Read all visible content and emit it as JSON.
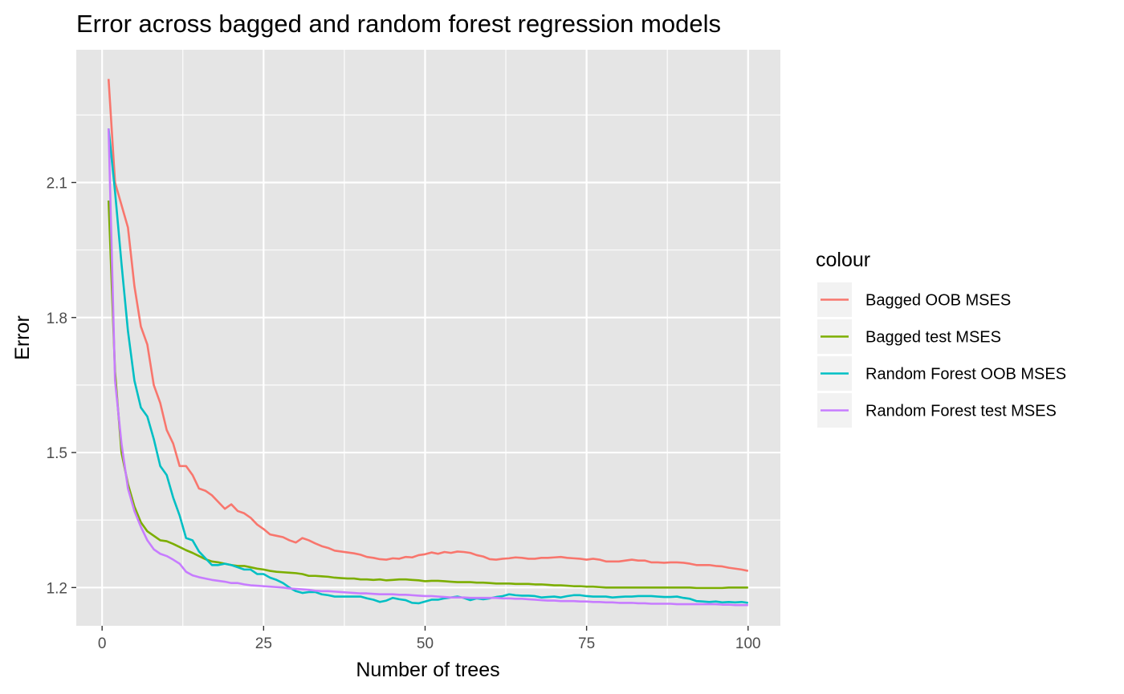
{
  "chart_data": {
    "type": "line",
    "title": "Error across bagged and random forest regression models",
    "xlabel": "Number of trees",
    "ylabel": "Error",
    "xlim": [
      -4,
      105
    ],
    "ylim": [
      1.115,
      2.395
    ],
    "x_ticks": [
      0,
      25,
      50,
      75,
      100
    ],
    "x_tick_labels": [
      "0",
      "25",
      "50",
      "75",
      "100"
    ],
    "y_ticks": [
      1.2,
      1.5,
      1.8,
      2.1
    ],
    "y_tick_labels": [
      "1.2",
      "1.5",
      "1.8",
      "2.1"
    ],
    "grid": true,
    "legend": {
      "title": "colour",
      "position": "right"
    },
    "x": [
      1,
      2,
      3,
      4,
      5,
      6,
      7,
      8,
      9,
      10,
      11,
      12,
      13,
      14,
      15,
      16,
      17,
      18,
      19,
      20,
      21,
      22,
      23,
      24,
      25,
      26,
      27,
      28,
      29,
      30,
      31,
      32,
      33,
      34,
      35,
      36,
      37,
      38,
      39,
      40,
      41,
      42,
      43,
      44,
      45,
      46,
      47,
      48,
      49,
      50,
      51,
      52,
      53,
      54,
      55,
      56,
      57,
      58,
      59,
      60,
      61,
      62,
      63,
      64,
      65,
      66,
      67,
      68,
      69,
      70,
      71,
      72,
      73,
      74,
      75,
      76,
      77,
      78,
      79,
      80,
      81,
      82,
      83,
      84,
      85,
      86,
      87,
      88,
      89,
      90,
      91,
      92,
      93,
      94,
      95,
      96,
      97,
      98,
      99,
      100
    ],
    "series": [
      {
        "name": "Bagged OOB MSES",
        "color": "#F8766D",
        "values": [
          2.33,
          2.1,
          2.05,
          2.0,
          1.87,
          1.78,
          1.74,
          1.65,
          1.61,
          1.55,
          1.52,
          1.47,
          1.47,
          1.45,
          1.42,
          1.415,
          1.405,
          1.39,
          1.375,
          1.385,
          1.37,
          1.365,
          1.355,
          1.34,
          1.33,
          1.318,
          1.315,
          1.312,
          1.305,
          1.3,
          1.31,
          1.305,
          1.298,
          1.292,
          1.288,
          1.282,
          1.28,
          1.278,
          1.276,
          1.273,
          1.268,
          1.266,
          1.263,
          1.262,
          1.265,
          1.264,
          1.268,
          1.267,
          1.272,
          1.274,
          1.278,
          1.275,
          1.279,
          1.277,
          1.28,
          1.279,
          1.277,
          1.272,
          1.269,
          1.263,
          1.262,
          1.264,
          1.265,
          1.267,
          1.266,
          1.264,
          1.264,
          1.266,
          1.266,
          1.267,
          1.268,
          1.266,
          1.265,
          1.264,
          1.262,
          1.264,
          1.262,
          1.258,
          1.258,
          1.258,
          1.26,
          1.262,
          1.26,
          1.26,
          1.256,
          1.256,
          1.255,
          1.256,
          1.256,
          1.255,
          1.253,
          1.25,
          1.25,
          1.25,
          1.248,
          1.247,
          1.244,
          1.242,
          1.24,
          1.237
        ]
      },
      {
        "name": "Bagged test MSES",
        "color": "#7CAE00",
        "values": [
          2.06,
          1.68,
          1.5,
          1.43,
          1.38,
          1.345,
          1.325,
          1.315,
          1.305,
          1.303,
          1.297,
          1.29,
          1.283,
          1.277,
          1.27,
          1.263,
          1.258,
          1.256,
          1.253,
          1.25,
          1.248,
          1.248,
          1.245,
          1.242,
          1.24,
          1.237,
          1.235,
          1.234,
          1.233,
          1.232,
          1.23,
          1.226,
          1.226,
          1.225,
          1.224,
          1.222,
          1.221,
          1.22,
          1.22,
          1.218,
          1.218,
          1.217,
          1.218,
          1.216,
          1.217,
          1.218,
          1.218,
          1.217,
          1.216,
          1.214,
          1.215,
          1.215,
          1.214,
          1.213,
          1.212,
          1.212,
          1.212,
          1.211,
          1.211,
          1.21,
          1.209,
          1.209,
          1.209,
          1.208,
          1.208,
          1.208,
          1.207,
          1.207,
          1.206,
          1.205,
          1.205,
          1.204,
          1.203,
          1.203,
          1.202,
          1.202,
          1.201,
          1.2,
          1.2,
          1.2,
          1.2,
          1.2,
          1.2,
          1.2,
          1.2,
          1.2,
          1.2,
          1.2,
          1.2,
          1.2,
          1.2,
          1.199,
          1.199,
          1.199,
          1.199,
          1.199,
          1.2,
          1.2,
          1.2,
          1.2
        ]
      },
      {
        "name": "Random Forest OOB MSES",
        "color": "#00BFC4",
        "values": [
          2.22,
          2.08,
          1.92,
          1.77,
          1.66,
          1.6,
          1.58,
          1.53,
          1.47,
          1.45,
          1.4,
          1.36,
          1.31,
          1.305,
          1.28,
          1.265,
          1.25,
          1.25,
          1.253,
          1.25,
          1.245,
          1.24,
          1.24,
          1.23,
          1.23,
          1.222,
          1.217,
          1.21,
          1.2,
          1.192,
          1.188,
          1.19,
          1.19,
          1.185,
          1.183,
          1.18,
          1.18,
          1.18,
          1.18,
          1.18,
          1.176,
          1.173,
          1.168,
          1.171,
          1.177,
          1.174,
          1.172,
          1.166,
          1.165,
          1.169,
          1.173,
          1.173,
          1.176,
          1.178,
          1.18,
          1.177,
          1.172,
          1.176,
          1.174,
          1.176,
          1.179,
          1.181,
          1.185,
          1.183,
          1.182,
          1.182,
          1.181,
          1.178,
          1.179,
          1.18,
          1.178,
          1.181,
          1.183,
          1.183,
          1.181,
          1.18,
          1.18,
          1.18,
          1.178,
          1.179,
          1.18,
          1.18,
          1.181,
          1.181,
          1.181,
          1.18,
          1.179,
          1.179,
          1.18,
          1.177,
          1.175,
          1.17,
          1.169,
          1.168,
          1.169,
          1.167,
          1.168,
          1.167,
          1.168,
          1.166
        ]
      },
      {
        "name": "Random Forest test MSES",
        "color": "#C77CFF",
        "values": [
          2.22,
          1.66,
          1.52,
          1.42,
          1.37,
          1.335,
          1.305,
          1.285,
          1.275,
          1.27,
          1.262,
          1.253,
          1.235,
          1.227,
          1.223,
          1.22,
          1.217,
          1.215,
          1.213,
          1.21,
          1.21,
          1.207,
          1.205,
          1.204,
          1.203,
          1.202,
          1.201,
          1.2,
          1.198,
          1.197,
          1.196,
          1.195,
          1.193,
          1.192,
          1.192,
          1.191,
          1.19,
          1.189,
          1.188,
          1.187,
          1.187,
          1.186,
          1.185,
          1.185,
          1.185,
          1.184,
          1.184,
          1.183,
          1.182,
          1.181,
          1.181,
          1.18,
          1.179,
          1.178,
          1.178,
          1.178,
          1.177,
          1.177,
          1.177,
          1.177,
          1.177,
          1.176,
          1.176,
          1.175,
          1.175,
          1.174,
          1.173,
          1.172,
          1.171,
          1.171,
          1.17,
          1.17,
          1.17,
          1.169,
          1.169,
          1.168,
          1.168,
          1.167,
          1.167,
          1.166,
          1.166,
          1.166,
          1.165,
          1.165,
          1.164,
          1.164,
          1.164,
          1.164,
          1.163,
          1.163,
          1.163,
          1.163,
          1.163,
          1.163,
          1.163,
          1.162,
          1.162,
          1.161,
          1.161,
          1.161
        ]
      }
    ]
  },
  "colors": {
    "panel_background": "#E5E5E5",
    "grid": "#FFFFFF",
    "legend_key_background": "#F2F2F2"
  }
}
